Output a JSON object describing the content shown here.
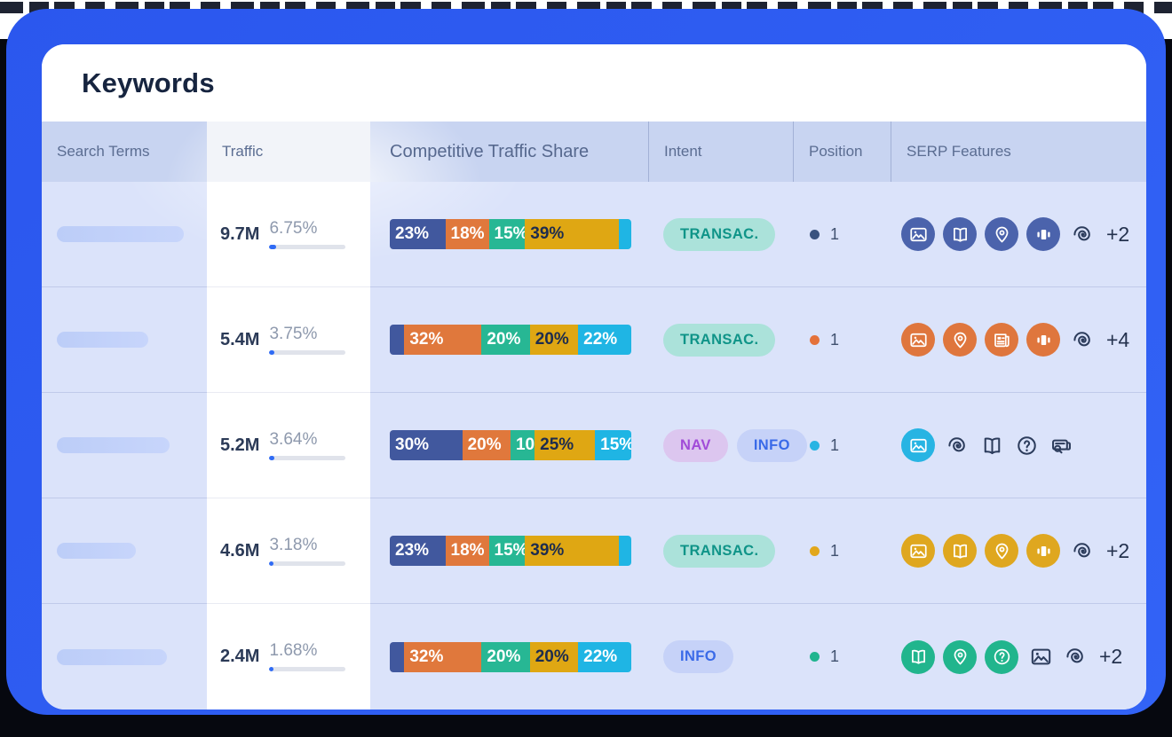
{
  "page": {
    "title": "Keywords"
  },
  "table": {
    "columns": [
      "Search Terms",
      "Traffic",
      "Competitive Traffic Share",
      "Intent",
      "Position",
      "SERP Features"
    ],
    "rows": [
      {
        "skeleton_width": 143,
        "traffic": {
          "value": "9.7M",
          "share": "6.75%",
          "bar_pct": 9
        },
        "share_bar": [
          {
            "label": "23%",
            "pct": 23,
            "color": "#41589e",
            "text": "light"
          },
          {
            "label": "18%",
            "pct": 18,
            "color": "#e0783c",
            "text": "light"
          },
          {
            "label": "15%",
            "pct": 15,
            "color": "#27b794",
            "text": "light"
          },
          {
            "label": "39%",
            "pct": 39,
            "color": "#dfa713",
            "text": "dark"
          },
          {
            "label": "",
            "pct": 5,
            "color": "#1fb5e4",
            "text": "light"
          }
        ],
        "intents": [
          {
            "label": "TRANSAC.",
            "bg": "#abe2da",
            "color": "#0f9488"
          }
        ],
        "position": {
          "value": "1",
          "dot": "#3a537f"
        },
        "serp": {
          "circle_color": "#4b63ac",
          "filled": [
            "image-icon",
            "book-icon",
            "location-icon",
            "carousel-icon"
          ],
          "outlined": [
            "swirl-icon"
          ],
          "more": "+2"
        }
      },
      {
        "skeleton_width": 103,
        "traffic": {
          "value": "5.4M",
          "share": "3.75%",
          "bar_pct": 6
        },
        "share_bar": [
          {
            "label": "",
            "pct": 6,
            "color": "#41589e",
            "text": "light"
          },
          {
            "label": "32%",
            "pct": 32,
            "color": "#e0783c",
            "text": "light"
          },
          {
            "label": "20%",
            "pct": 20,
            "color": "#27b794",
            "text": "light"
          },
          {
            "label": "20%",
            "pct": 20,
            "color": "#dfa713",
            "text": "dark"
          },
          {
            "label": "22%",
            "pct": 22,
            "color": "#1fb5e4",
            "text": "light"
          }
        ],
        "intents": [
          {
            "label": "TRANSAC.",
            "bg": "#abe2da",
            "color": "#0f9488"
          }
        ],
        "position": {
          "value": "1",
          "dot": "#e4713a"
        },
        "serp": {
          "circle_color": "#df763d",
          "filled": [
            "image-icon",
            "location-icon",
            "news-icon",
            "carousel-icon"
          ],
          "outlined": [
            "swirl-icon"
          ],
          "more": "+4"
        }
      },
      {
        "skeleton_width": 127,
        "traffic": {
          "value": "5.2M",
          "share": "3.64%",
          "bar_pct": 6
        },
        "share_bar": [
          {
            "label": "30%",
            "pct": 30,
            "color": "#41589e",
            "text": "light"
          },
          {
            "label": "20%",
            "pct": 20,
            "color": "#e0783c",
            "text": "light"
          },
          {
            "label": "10",
            "pct": 10,
            "color": "#27b794",
            "text": "light"
          },
          {
            "label": "25%",
            "pct": 25,
            "color": "#dfa713",
            "text": "dark"
          },
          {
            "label": "15%",
            "pct": 15,
            "color": "#1fb5e4",
            "text": "light"
          }
        ],
        "intents": [
          {
            "label": "NAV",
            "bg": "#dcc6ef",
            "color": "#a14bd8"
          },
          {
            "label": "INFO",
            "bg": "#c6d2f8",
            "color": "#3a6ae8"
          }
        ],
        "position": {
          "value": "1",
          "dot": "#27b4e3"
        },
        "serp": {
          "circle_color": "#27b4e3",
          "filled": [
            "image-icon"
          ],
          "outlined": [
            "swirl-icon",
            "book-icon",
            "question-icon",
            "related-searches-icon"
          ],
          "more": ""
        }
      },
      {
        "skeleton_width": 89,
        "traffic": {
          "value": "4.6M",
          "share": "3.18%",
          "bar_pct": 5
        },
        "share_bar": [
          {
            "label": "23%",
            "pct": 23,
            "color": "#41589e",
            "text": "light"
          },
          {
            "label": "18%",
            "pct": 18,
            "color": "#e0783c",
            "text": "light"
          },
          {
            "label": "15%",
            "pct": 15,
            "color": "#27b794",
            "text": "light"
          },
          {
            "label": "39%",
            "pct": 39,
            "color": "#dfa713",
            "text": "dark"
          },
          {
            "label": "",
            "pct": 5,
            "color": "#1fb5e4",
            "text": "light"
          }
        ],
        "intents": [
          {
            "label": "TRANSAC.",
            "bg": "#abe2da",
            "color": "#0f9488"
          }
        ],
        "position": {
          "value": "1",
          "dot": "#e2a71b"
        },
        "serp": {
          "circle_color": "#dfa71f",
          "filled": [
            "image-icon",
            "book-icon",
            "location-icon",
            "carousel-icon"
          ],
          "outlined": [
            "swirl-icon"
          ],
          "more": "+2"
        }
      },
      {
        "skeleton_width": 124,
        "traffic": {
          "value": "2.4M",
          "share": "1.68%",
          "bar_pct": 5
        },
        "share_bar": [
          {
            "label": "",
            "pct": 6,
            "color": "#41589e",
            "text": "light"
          },
          {
            "label": "32%",
            "pct": 32,
            "color": "#e0783c",
            "text": "light"
          },
          {
            "label": "20%",
            "pct": 20,
            "color": "#27b794",
            "text": "light"
          },
          {
            "label": "20%",
            "pct": 20,
            "color": "#dfa713",
            "text": "dark"
          },
          {
            "label": "22%",
            "pct": 22,
            "color": "#1fb5e4",
            "text": "light"
          }
        ],
        "intents": [
          {
            "label": "INFO",
            "bg": "#c6d2f8",
            "color": "#3a6ae8"
          }
        ],
        "position": {
          "value": "1",
          "dot": "#1fb48f"
        },
        "serp": {
          "circle_color": "#21b58d",
          "filled": [
            "book-icon",
            "location-icon",
            "question-icon"
          ],
          "outlined": [
            "image-icon",
            "swirl-icon"
          ],
          "more": "+2"
        }
      }
    ]
  }
}
